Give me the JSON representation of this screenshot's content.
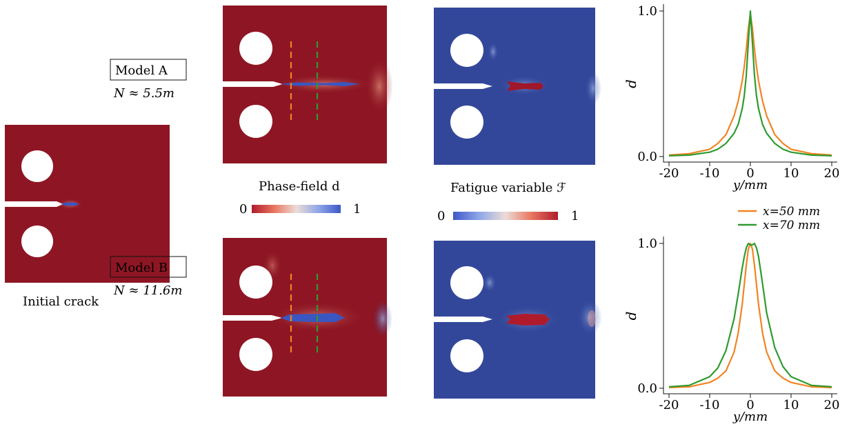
{
  "initial": {
    "caption": "Initial crack"
  },
  "model_a": {
    "label": "Model A",
    "cycles": "N ≈ 5.5m"
  },
  "model_b": {
    "label": "Model B",
    "cycles": "N ≈ 11.6m"
  },
  "phase_colorbar": {
    "title": "Phase-field d",
    "min": "0",
    "max": "1"
  },
  "fatigue_colorbar": {
    "title": "Fatigue variable ℱ",
    "min": "0",
    "max": "1"
  },
  "colors": {
    "field_red": "#8e1624",
    "field_blue": "#33479a",
    "line_50": "#f28322",
    "line_70": "#2e9a2e"
  },
  "chart_data": [
    {
      "type": "line",
      "name": "Model A profile",
      "x": [
        -20,
        -15,
        -10,
        -8,
        -6,
        -4,
        -3,
        -2,
        -1.5,
        -1,
        -0.5,
        0,
        0.5,
        1,
        1.5,
        2,
        3,
        4,
        6,
        8,
        10,
        15,
        20
      ],
      "series": [
        {
          "name": "x=50 mm",
          "color": "#f28322",
          "values": [
            0.01,
            0.02,
            0.05,
            0.09,
            0.15,
            0.28,
            0.38,
            0.52,
            0.62,
            0.74,
            0.88,
            0.98,
            0.88,
            0.74,
            0.62,
            0.52,
            0.38,
            0.28,
            0.15,
            0.09,
            0.05,
            0.02,
            0.01
          ]
        },
        {
          "name": "x=70 mm",
          "color": "#2e9a2e",
          "values": [
            0.005,
            0.01,
            0.03,
            0.05,
            0.09,
            0.16,
            0.22,
            0.33,
            0.42,
            0.56,
            0.78,
            1.0,
            0.78,
            0.56,
            0.42,
            0.33,
            0.22,
            0.16,
            0.09,
            0.05,
            0.03,
            0.01,
            0.005
          ]
        }
      ],
      "xlabel": "y/mm",
      "ylabel": "d",
      "xticks": [
        "-20",
        "-10",
        "0",
        "10",
        "20"
      ],
      "yticks": [
        "0.0",
        "1.0"
      ],
      "xlim": [
        -20,
        20
      ],
      "ylim": [
        0,
        1
      ]
    },
    {
      "type": "line",
      "name": "Model B profile",
      "x": [
        -20,
        -15,
        -10,
        -8,
        -6,
        -4,
        -3,
        -2,
        -1.5,
        -1,
        -0.5,
        0,
        0.5,
        1,
        1.5,
        2,
        3,
        4,
        6,
        8,
        10,
        15,
        20
      ],
      "series": [
        {
          "name": "x=50 mm",
          "color": "#f28322",
          "values": [
            0.005,
            0.01,
            0.04,
            0.07,
            0.12,
            0.25,
            0.38,
            0.58,
            0.72,
            0.85,
            0.96,
            1.0,
            0.96,
            0.85,
            0.72,
            0.58,
            0.38,
            0.25,
            0.12,
            0.07,
            0.04,
            0.01,
            0.005
          ]
        },
        {
          "name": "x=70 mm",
          "color": "#2e9a2e",
          "values": [
            0.01,
            0.02,
            0.08,
            0.14,
            0.26,
            0.48,
            0.65,
            0.83,
            0.91,
            0.97,
            1.0,
            0.99,
            0.99,
            1.0,
            0.97,
            0.91,
            0.72,
            0.52,
            0.28,
            0.15,
            0.08,
            0.02,
            0.01
          ]
        }
      ],
      "xlabel": "y/mm",
      "ylabel": "d",
      "xticks": [
        "-20",
        "-10",
        "0",
        "10",
        "20"
      ],
      "yticks": [
        "0.0",
        "1.0"
      ],
      "xlim": [
        -20,
        20
      ],
      "ylim": [
        0,
        1
      ]
    }
  ]
}
